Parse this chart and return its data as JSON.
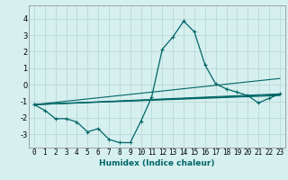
{
  "title": "",
  "xlabel": "Humidex (Indice chaleur)",
  "ylabel": "",
  "background_color": "#d6efef",
  "grid_color": "#bcd8d8",
  "line_color": "#006666",
  "spine_color": "#888888",
  "xlim": [
    -0.5,
    23.5
  ],
  "ylim": [
    -3.8,
    4.8
  ],
  "yticks": [
    -3,
    -2,
    -1,
    0,
    1,
    2,
    3,
    4
  ],
  "xticks": [
    0,
    1,
    2,
    3,
    4,
    5,
    6,
    7,
    8,
    9,
    10,
    11,
    12,
    13,
    14,
    15,
    16,
    17,
    18,
    19,
    20,
    21,
    22,
    23
  ],
  "series_main": {
    "x": [
      0,
      1,
      2,
      3,
      4,
      5,
      6,
      7,
      8,
      9,
      10,
      11,
      12,
      13,
      14,
      15,
      16,
      17,
      18,
      19,
      20,
      21,
      22,
      23
    ],
    "y": [
      -1.2,
      -1.55,
      -2.05,
      -2.05,
      -2.25,
      -2.85,
      -2.65,
      -3.3,
      -3.5,
      -3.5,
      -2.2,
      -0.75,
      2.15,
      2.9,
      3.85,
      3.2,
      1.2,
      0.05,
      -0.25,
      -0.45,
      -0.65,
      -1.1,
      -0.82,
      -0.55
    ]
  },
  "trend_lines": [
    {
      "x": [
        0,
        23
      ],
      "y": [
        -1.2,
        0.38
      ]
    },
    {
      "x": [
        0,
        23
      ],
      "y": [
        -1.2,
        -0.55
      ]
    },
    {
      "x": [
        0,
        23
      ],
      "y": [
        -1.2,
        -0.6
      ]
    },
    {
      "x": [
        0,
        23
      ],
      "y": [
        -1.2,
        -0.65
      ]
    }
  ],
  "xlabel_fontsize": 6.5,
  "tick_fontsize": 5.5
}
